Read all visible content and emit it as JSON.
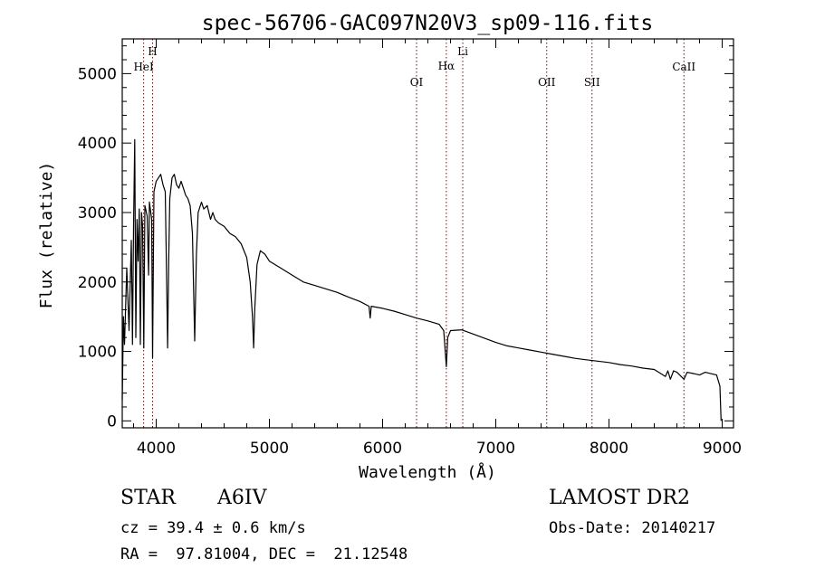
{
  "chart_data": {
    "type": "line",
    "title": "spec-56706-GAC097N20V3_sp09-116.fits",
    "xlabel": "Wavelength (Å)",
    "ylabel": "Flux (relative)",
    "xlim": [
      3700,
      9100
    ],
    "ylim": [
      -100,
      5500
    ],
    "x_ticks": [
      4000,
      5000,
      6000,
      7000,
      8000,
      9000
    ],
    "y_ticks": [
      0,
      1000,
      2000,
      3000,
      4000,
      5000
    ],
    "grid": false,
    "line_color": "#000000",
    "marker_color": "#8b0000",
    "series": [
      {
        "values": [
          [
            3700,
            300
          ],
          [
            3710,
            1500
          ],
          [
            3720,
            1100
          ],
          [
            3740,
            2200
          ],
          [
            3760,
            1300
          ],
          [
            3780,
            2600
          ],
          [
            3790,
            1100
          ],
          [
            3800,
            2800
          ],
          [
            3810,
            4050
          ],
          [
            3820,
            1200
          ],
          [
            3830,
            2900
          ],
          [
            3840,
            2300
          ],
          [
            3850,
            3050
          ],
          [
            3860,
            1100
          ],
          [
            3870,
            3000
          ],
          [
            3880,
            2800
          ],
          [
            3890,
            1050
          ],
          [
            3900,
            3100
          ],
          [
            3920,
            2950
          ],
          [
            3933,
            2100
          ],
          [
            3940,
            3150
          ],
          [
            3960,
            2900
          ],
          [
            3968,
            900
          ],
          [
            3980,
            3300
          ],
          [
            4000,
            3450
          ],
          [
            4020,
            3500
          ],
          [
            4040,
            3550
          ],
          [
            4060,
            3400
          ],
          [
            4080,
            3300
          ],
          [
            4090,
            2200
          ],
          [
            4101,
            1050
          ],
          [
            4110,
            2300
          ],
          [
            4120,
            3200
          ],
          [
            4140,
            3500
          ],
          [
            4160,
            3550
          ],
          [
            4180,
            3400
          ],
          [
            4200,
            3350
          ],
          [
            4220,
            3450
          ],
          [
            4240,
            3350
          ],
          [
            4260,
            3250
          ],
          [
            4280,
            3200
          ],
          [
            4300,
            3100
          ],
          [
            4320,
            2700
          ],
          [
            4340,
            1150
          ],
          [
            4355,
            2400
          ],
          [
            4370,
            3000
          ],
          [
            4400,
            3150
          ],
          [
            4420,
            3050
          ],
          [
            4450,
            3100
          ],
          [
            4480,
            2900
          ],
          [
            4500,
            3000
          ],
          [
            4520,
            2900
          ],
          [
            4550,
            2850
          ],
          [
            4600,
            2800
          ],
          [
            4650,
            2700
          ],
          [
            4700,
            2650
          ],
          [
            4750,
            2550
          ],
          [
            4800,
            2350
          ],
          [
            4830,
            2000
          ],
          [
            4850,
            1500
          ],
          [
            4861,
            1050
          ],
          [
            4870,
            1600
          ],
          [
            4890,
            2250
          ],
          [
            4920,
            2450
          ],
          [
            4960,
            2400
          ],
          [
            5000,
            2300
          ],
          [
            5100,
            2200
          ],
          [
            5200,
            2100
          ],
          [
            5300,
            2000
          ],
          [
            5400,
            1950
          ],
          [
            5500,
            1900
          ],
          [
            5600,
            1850
          ],
          [
            5700,
            1780
          ],
          [
            5800,
            1720
          ],
          [
            5880,
            1650
          ],
          [
            5890,
            1480
          ],
          [
            5900,
            1650
          ],
          [
            6000,
            1620
          ],
          [
            6100,
            1580
          ],
          [
            6200,
            1530
          ],
          [
            6300,
            1480
          ],
          [
            6400,
            1440
          ],
          [
            6500,
            1390
          ],
          [
            6540,
            1300
          ],
          [
            6563,
            780
          ],
          [
            6575,
            1200
          ],
          [
            6600,
            1300
          ],
          [
            6700,
            1310
          ],
          [
            6800,
            1250
          ],
          [
            6900,
            1190
          ],
          [
            7000,
            1130
          ],
          [
            7100,
            1080
          ],
          [
            7200,
            1050
          ],
          [
            7300,
            1020
          ],
          [
            7400,
            990
          ],
          [
            7500,
            960
          ],
          [
            7600,
            930
          ],
          [
            7700,
            900
          ],
          [
            7800,
            880
          ],
          [
            7900,
            860
          ],
          [
            8000,
            840
          ],
          [
            8100,
            810
          ],
          [
            8200,
            790
          ],
          [
            8300,
            760
          ],
          [
            8400,
            740
          ],
          [
            8498,
            640
          ],
          [
            8520,
            720
          ],
          [
            8542,
            600
          ],
          [
            8570,
            720
          ],
          [
            8600,
            700
          ],
          [
            8662,
            600
          ],
          [
            8690,
            700
          ],
          [
            8750,
            680
          ],
          [
            8800,
            660
          ],
          [
            8850,
            700
          ],
          [
            8900,
            680
          ],
          [
            8950,
            660
          ],
          [
            8980,
            500
          ],
          [
            8990,
            0
          ]
        ]
      }
    ],
    "line_markers": [
      {
        "label": "HeI",
        "x": 3889
      },
      {
        "label": "H",
        "x": 3968
      },
      {
        "label": "OI",
        "x": 6300
      },
      {
        "label": "Hα",
        "x": 6563
      },
      {
        "label": "Li",
        "x": 6708
      },
      {
        "label": "OII",
        "x": 7450
      },
      {
        "label": "SII",
        "x": 7850
      },
      {
        "label": "CaII",
        "x": 8662
      }
    ]
  },
  "footer": {
    "object_type": "STAR",
    "subclass": "A6IV",
    "survey": "LAMOST DR2",
    "cz": "cz = 39.4 ± 0.6 km/s",
    "obs_date": "Obs-Date: 20140217",
    "coords": "RA =  97.81004, DEC =  21.12548"
  }
}
